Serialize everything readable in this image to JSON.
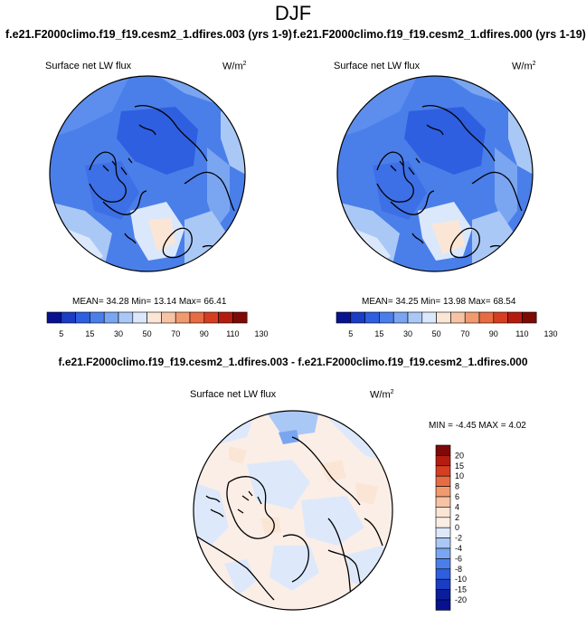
{
  "title": "DJF",
  "panels": [
    {
      "case_title": "f.e21.F2000climo.f19_f19.cesm2_1.dfires.003 (yrs 1-9)",
      "variable": "Surface net LW flux",
      "units": "W/m",
      "units_exp": "2",
      "stats": "MEAN= 34.28  Min= 13.14  Max= 66.41",
      "mean": 34.28,
      "min": 13.14,
      "max": 66.41
    },
    {
      "case_title": "f.e21.F2000climo.f19_f19.cesm2_1.dfires.000 (yrs 1-19)",
      "variable": "Surface net LW flux",
      "units": "W/m",
      "units_exp": "2",
      "stats": "MEAN= 34.25  Min= 13.98  Max= 68.54",
      "mean": 34.25,
      "min": 13.98,
      "max": 68.54
    }
  ],
  "diff_panel": {
    "title": "f.e21.F2000climo.f19_f19.cesm2_1.dfires.003 - f.e21.F2000climo.f19_f19.cesm2_1.dfires.000",
    "variable": "Surface net LW flux",
    "units": "W/m",
    "units_exp": "2",
    "stats": "MIN = -4.45 MAX =  4.02",
    "min": -4.45,
    "max": 4.02
  },
  "colorbar_abs": {
    "labels": [
      "5",
      "15",
      "30",
      "50",
      "70",
      "90",
      "110",
      "130"
    ],
    "colors": [
      "#08118f",
      "#1b3dc4",
      "#2e5fe0",
      "#4a7fea",
      "#7aa5f0",
      "#aac8f6",
      "#dbe8fb",
      "#fbe6d6",
      "#f7c3a5",
      "#f19a70",
      "#e86c43",
      "#d63e22",
      "#b41c10",
      "#7d0a06"
    ]
  },
  "colorbar_diff": {
    "labels": [
      "20",
      "15",
      "10",
      "8",
      "6",
      "4",
      "2",
      "0",
      "-2",
      "-4",
      "-6",
      "-8",
      "-10",
      "-15",
      "-20"
    ],
    "colors": [
      "#7d0a06",
      "#b41c10",
      "#d63e22",
      "#e86c43",
      "#f19a70",
      "#f7c3a5",
      "#fbe6d6",
      "#fbeee6",
      "#dde9fb",
      "#aac8f6",
      "#7aa5f0",
      "#4a7fea",
      "#2e5fe0",
      "#1b3dc4",
      "#0a1e9c",
      "#08118f"
    ]
  }
}
